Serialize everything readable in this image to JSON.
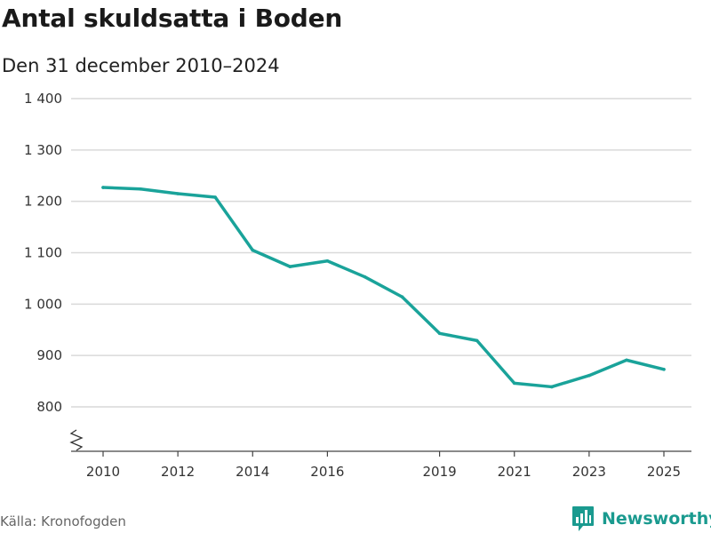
{
  "title": "Antal skuldsatta i Boden",
  "subtitle": "Den 31 december 2010–2024",
  "source": "Källa: Kronofogden",
  "brand": {
    "name": "Newsworthy",
    "icon": "newsworthy-logo-icon",
    "color": "#1a9a8f"
  },
  "chart_data": {
    "type": "line",
    "title": "Antal skuldsatta i Boden",
    "xlabel": "",
    "ylabel": "",
    "x_ticks": [
      "2010",
      "2012",
      "2014",
      "2016",
      "2019",
      "2021",
      "2023",
      "2025"
    ],
    "y_ticks": [
      "1 400",
      "1 300",
      "1 200",
      "1 100",
      "1 000",
      "900",
      "800"
    ],
    "ylim": [
      800,
      1400
    ],
    "xlim": [
      2010,
      2025
    ],
    "axis_break": true,
    "grid": true,
    "series": [
      {
        "name": "Antal skuldsatta",
        "color": "#1aa39a",
        "x": [
          2010,
          2011,
          2012,
          2013,
          2014,
          2015,
          2016,
          2017,
          2018,
          2019,
          2020,
          2021,
          2022,
          2023,
          2024,
          2025
        ],
        "values": [
          1227,
          1224,
          1215,
          1208,
          1105,
          1073,
          1084,
          1053,
          1014,
          943,
          929,
          846,
          839,
          861,
          891,
          873
        ]
      }
    ]
  }
}
